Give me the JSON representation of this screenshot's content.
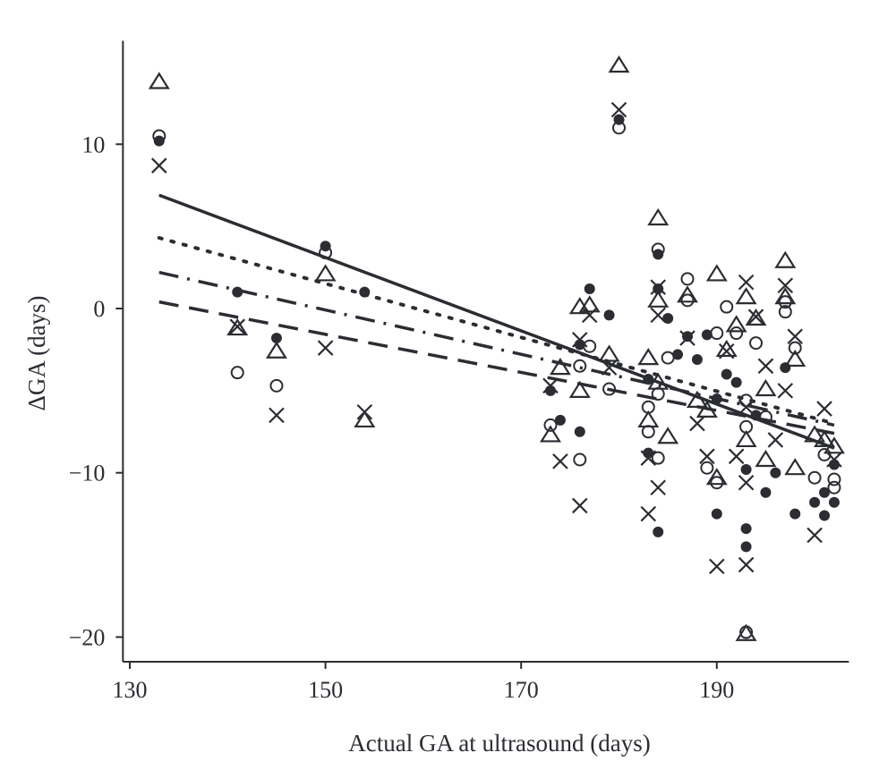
{
  "chart_data": {
    "type": "scatter",
    "title": "",
    "xlabel": "Actual GA at ultrasound (days)",
    "ylabel": "ΔGA (days)",
    "xlim": [
      129.3,
      203.5
    ],
    "ylim": [
      -21.5,
      16.3
    ],
    "xticks": [
      130,
      150,
      170,
      190
    ],
    "yticks": [
      10,
      0,
      -10,
      -20
    ],
    "xtick_labels": [
      "130",
      "150",
      "170",
      "190"
    ],
    "ytick_labels": [
      "10",
      "0",
      "−10",
      "−20"
    ],
    "grid": false,
    "legend": "none",
    "color": "#2b2d33",
    "series": [
      {
        "marker": "filled-circle",
        "points": [
          [
            133,
            10.2
          ],
          [
            141,
            1.0
          ],
          [
            145,
            -1.8
          ],
          [
            150,
            3.8
          ],
          [
            154,
            1.0
          ],
          [
            173,
            -5.0
          ],
          [
            174,
            -6.8
          ],
          [
            176,
            -7.5
          ],
          [
            176,
            -2.2
          ],
          [
            177,
            1.2
          ],
          [
            179,
            -0.4
          ],
          [
            180,
            11.5
          ],
          [
            183,
            -4.3
          ],
          [
            183,
            -8.8
          ],
          [
            184,
            3.3
          ],
          [
            184,
            1.2
          ],
          [
            184,
            -13.6
          ],
          [
            185,
            -0.6
          ],
          [
            186,
            -2.8
          ],
          [
            187,
            -1.7
          ],
          [
            188,
            -3.1
          ],
          [
            189,
            -1.6
          ],
          [
            190,
            -5.5
          ],
          [
            190,
            -12.5
          ],
          [
            191,
            -4.0
          ],
          [
            192,
            -4.5
          ],
          [
            193,
            -9.8
          ],
          [
            193,
            -13.4
          ],
          [
            193,
            -14.5
          ],
          [
            194,
            -6.5
          ],
          [
            195,
            -11.2
          ],
          [
            196,
            -10.0
          ],
          [
            197,
            -3.6
          ],
          [
            198,
            -12.5
          ],
          [
            200,
            -11.8
          ],
          [
            201,
            -11.2
          ],
          [
            201,
            -12.6
          ],
          [
            202,
            -9.5
          ],
          [
            202,
            -11.8
          ]
        ]
      },
      {
        "marker": "open-circle",
        "points": [
          [
            133,
            10.5
          ],
          [
            141,
            -3.9
          ],
          [
            145,
            -4.7
          ],
          [
            150,
            3.4
          ],
          [
            173,
            -7.1
          ],
          [
            176,
            -3.5
          ],
          [
            176,
            -9.2
          ],
          [
            177,
            -2.3
          ],
          [
            179,
            -4.9
          ],
          [
            180,
            11.0
          ],
          [
            183,
            -6.0
          ],
          [
            183,
            -7.5
          ],
          [
            184,
            3.6
          ],
          [
            184,
            -5.2
          ],
          [
            184,
            -9.1
          ],
          [
            185,
            -3.0
          ],
          [
            187,
            1.8
          ],
          [
            187,
            0.5
          ],
          [
            189,
            -9.7
          ],
          [
            190,
            -1.5
          ],
          [
            190,
            -10.6
          ],
          [
            191,
            0.1
          ],
          [
            192,
            -1.5
          ],
          [
            193,
            -5.6
          ],
          [
            193,
            -7.2
          ],
          [
            193,
            -19.7
          ],
          [
            194,
            -2.1
          ],
          [
            195,
            -6.6
          ],
          [
            197,
            0.4
          ],
          [
            197,
            -0.2
          ],
          [
            198,
            -2.4
          ],
          [
            200,
            -10.3
          ],
          [
            201,
            -8.9
          ],
          [
            202,
            -10.4
          ],
          [
            202,
            -10.9
          ]
        ]
      },
      {
        "marker": "triangle",
        "points": [
          [
            133,
            13.8
          ],
          [
            141,
            -1.2
          ],
          [
            145,
            -2.6
          ],
          [
            150,
            2.1
          ],
          [
            154,
            -6.8
          ],
          [
            173,
            -7.7
          ],
          [
            174,
            -3.6
          ],
          [
            176,
            0.1
          ],
          [
            176,
            -5.0
          ],
          [
            177,
            0.2
          ],
          [
            179,
            -2.8
          ],
          [
            180,
            14.8
          ],
          [
            183,
            -3.0
          ],
          [
            183,
            -6.8
          ],
          [
            184,
            5.5
          ],
          [
            184,
            0.5
          ],
          [
            184,
            -4.5
          ],
          [
            185,
            -7.8
          ],
          [
            187,
            0.8
          ],
          [
            188,
            -5.6
          ],
          [
            189,
            -6.2
          ],
          [
            190,
            2.1
          ],
          [
            190,
            -10.3
          ],
          [
            191,
            -2.5
          ],
          [
            192,
            -1.0
          ],
          [
            193,
            0.7
          ],
          [
            193,
            -8.0
          ],
          [
            193,
            -19.8
          ],
          [
            194,
            -0.6
          ],
          [
            195,
            -4.9
          ],
          [
            195,
            -9.2
          ],
          [
            197,
            2.9
          ],
          [
            197,
            0.7
          ],
          [
            198,
            -3.1
          ],
          [
            198,
            -9.7
          ],
          [
            200,
            -7.7
          ],
          [
            201,
            -8.0
          ],
          [
            202,
            -8.4
          ]
        ]
      },
      {
        "marker": "cross",
        "points": [
          [
            133,
            8.7
          ],
          [
            141,
            -1.1
          ],
          [
            145,
            -6.5
          ],
          [
            150,
            -2.4
          ],
          [
            154,
            -6.3
          ],
          [
            173,
            -4.7
          ],
          [
            174,
            -9.3
          ],
          [
            176,
            -12.0
          ],
          [
            176,
            -1.9
          ],
          [
            177,
            -0.4
          ],
          [
            179,
            -3.6
          ],
          [
            180,
            12.1
          ],
          [
            183,
            -9.1
          ],
          [
            183,
            -12.5
          ],
          [
            184,
            1.3
          ],
          [
            184,
            -0.4
          ],
          [
            184,
            -10.9
          ],
          [
            187,
            -1.8
          ],
          [
            188,
            -7.0
          ],
          [
            189,
            -9.0
          ],
          [
            190,
            -15.7
          ],
          [
            191,
            -2.6
          ],
          [
            192,
            -9.0
          ],
          [
            193,
            1.6
          ],
          [
            193,
            -6.0
          ],
          [
            193,
            -10.6
          ],
          [
            193,
            -15.6
          ],
          [
            194,
            -0.5
          ],
          [
            195,
            -3.5
          ],
          [
            196,
            -8.0
          ],
          [
            197,
            1.4
          ],
          [
            197,
            -5.0
          ],
          [
            198,
            -1.7
          ],
          [
            200,
            -13.8
          ],
          [
            201,
            -6.1
          ],
          [
            202,
            -9.2
          ]
        ]
      }
    ],
    "fit_lines": [
      {
        "style": "solid",
        "from": [
          133,
          6.9
        ],
        "to": [
          202,
          -8.5
        ]
      },
      {
        "style": "dotted",
        "from": [
          133,
          4.3
        ],
        "to": [
          202,
          -7.0
        ]
      },
      {
        "style": "dash-dot",
        "from": [
          133,
          2.2
        ],
        "to": [
          202,
          -7.1
        ]
      },
      {
        "style": "dashed",
        "from": [
          133,
          0.4
        ],
        "to": [
          202,
          -7.6
        ]
      }
    ]
  }
}
